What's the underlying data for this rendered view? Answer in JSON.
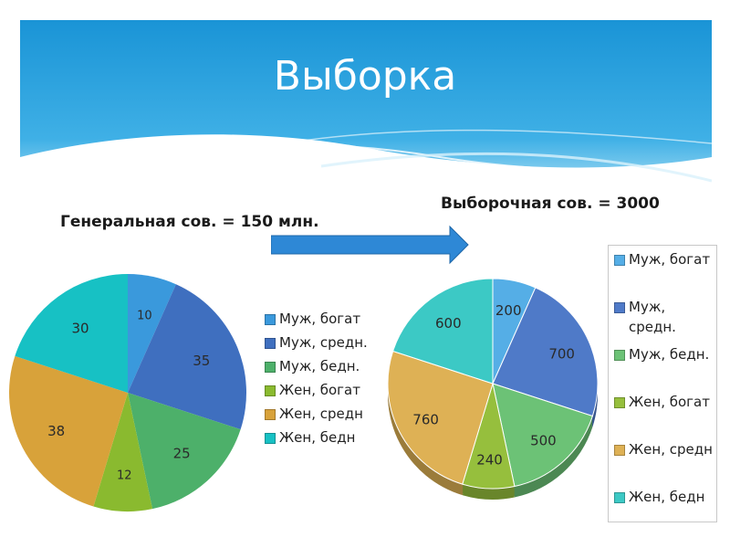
{
  "slide": {
    "title": "Выборка",
    "left_label": "Генеральная сов. = 150 млн.",
    "right_label": "Выборочная сов. = 3000"
  },
  "colors": {
    "header_top": "#1f9ad9",
    "header_bottom": "#9fd8f0",
    "arrow": "#2e88d6"
  },
  "chart_data": [
    {
      "type": "pie",
      "title": "",
      "legend_position": "right",
      "categories": [
        "Муж, богат",
        "Муж, средн.",
        "Муж, бедн.",
        "Жен, богат",
        "Жен, средн",
        "Жен, бедн"
      ],
      "values": [
        10,
        35,
        25,
        12,
        38,
        30
      ],
      "colors": [
        "#3a99dc",
        "#3f6fbf",
        "#4db06a",
        "#8aba2f",
        "#d8a23a",
        "#17c1c4"
      ]
    },
    {
      "type": "pie",
      "title": "",
      "legend_position": "right",
      "categories": [
        "Муж, богат",
        "Муж, средн.",
        "Муж, бедн.",
        "Жен, богат",
        "Жен, средн",
        "Жен, бедн"
      ],
      "legend_lines": [
        [
          "Муж, богат"
        ],
        [
          "Муж,",
          "средн."
        ],
        [
          "Муж, бедн."
        ],
        [
          "Жен, богат"
        ],
        [
          "Жен, средн"
        ],
        [
          "Жен, бедн"
        ]
      ],
      "values": [
        200,
        700,
        500,
        240,
        760,
        600
      ],
      "colors": [
        "#55aee6",
        "#4f7ac8",
        "#6cc276",
        "#96bf3d",
        "#deb155",
        "#3cc9c5"
      ]
    }
  ]
}
